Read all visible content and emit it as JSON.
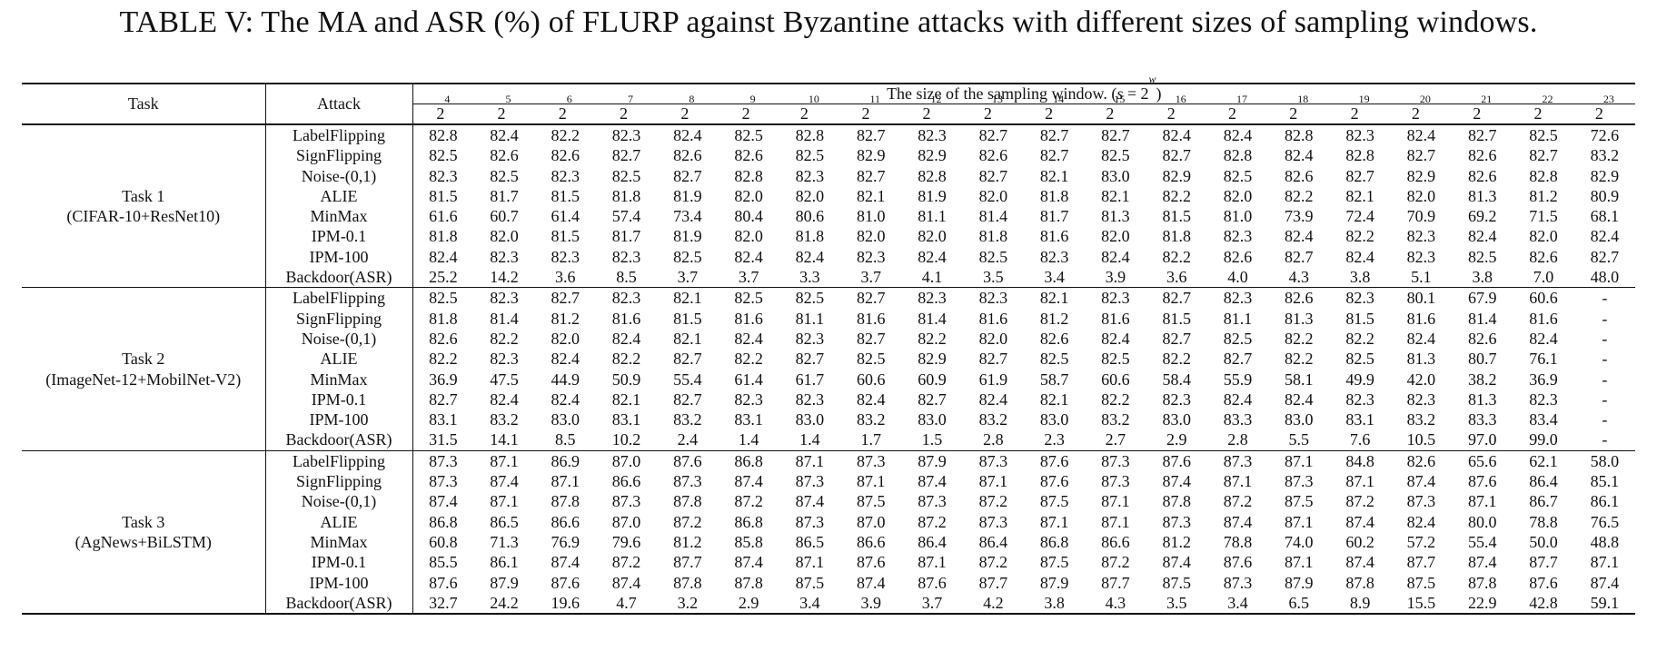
{
  "caption": "TABLE V: The MA and ASR (%) of FLURP against Byzantine attacks with different sizes of sampling windows.",
  "header": {
    "task_label": "Task",
    "attack_label": "Attack",
    "window_label": "The size of the sampling window. (s = 2^w)",
    "window_exponents": [
      "4",
      "5",
      "6",
      "7",
      "8",
      "9",
      "10",
      "11",
      "12",
      "13",
      "14",
      "15",
      "16",
      "17",
      "18",
      "19",
      "20",
      "21",
      "22",
      "23"
    ]
  },
  "tasks": [
    {
      "name": "Task 1",
      "subtitle": "(CIFAR-10+ResNet10)",
      "rows": [
        {
          "attack": "LabelFlipping",
          "values": [
            "82.8",
            "82.4",
            "82.2",
            "82.3",
            "82.4",
            "82.5",
            "82.8",
            "82.7",
            "82.3",
            "82.7",
            "82.7",
            "82.7",
            "82.4",
            "82.4",
            "82.8",
            "82.3",
            "82.4",
            "82.7",
            "82.5",
            "72.6"
          ]
        },
        {
          "attack": "SignFlipping",
          "values": [
            "82.5",
            "82.6",
            "82.6",
            "82.7",
            "82.6",
            "82.6",
            "82.5",
            "82.9",
            "82.9",
            "82.6",
            "82.7",
            "82.5",
            "82.7",
            "82.8",
            "82.4",
            "82.8",
            "82.7",
            "82.6",
            "82.7",
            "83.2"
          ]
        },
        {
          "attack": "Noise-(0,1)",
          "values": [
            "82.3",
            "82.5",
            "82.3",
            "82.5",
            "82.7",
            "82.8",
            "82.3",
            "82.7",
            "82.8",
            "82.7",
            "82.1",
            "83.0",
            "82.9",
            "82.5",
            "82.6",
            "82.7",
            "82.9",
            "82.6",
            "82.8",
            "82.9"
          ]
        },
        {
          "attack": "ALIE",
          "values": [
            "81.5",
            "81.7",
            "81.5",
            "81.8",
            "81.9",
            "82.0",
            "82.0",
            "82.1",
            "81.9",
            "82.0",
            "81.8",
            "82.1",
            "82.2",
            "82.0",
            "82.2",
            "82.1",
            "82.0",
            "81.3",
            "81.2",
            "80.9"
          ]
        },
        {
          "attack": "MinMax",
          "values": [
            "61.6",
            "60.7",
            "61.4",
            "57.4",
            "73.4",
            "80.4",
            "80.6",
            "81.0",
            "81.1",
            "81.4",
            "81.7",
            "81.3",
            "81.5",
            "81.0",
            "73.9",
            "72.4",
            "70.9",
            "69.2",
            "71.5",
            "68.1"
          ]
        },
        {
          "attack": "IPM-0.1",
          "values": [
            "81.8",
            "82.0",
            "81.5",
            "81.7",
            "81.9",
            "82.0",
            "81.8",
            "82.0",
            "82.0",
            "81.8",
            "81.6",
            "82.0",
            "81.8",
            "82.3",
            "82.4",
            "82.2",
            "82.3",
            "82.4",
            "82.0",
            "82.4"
          ]
        },
        {
          "attack": "IPM-100",
          "values": [
            "82.4",
            "82.3",
            "82.3",
            "82.3",
            "82.5",
            "82.4",
            "82.4",
            "82.3",
            "82.4",
            "82.5",
            "82.3",
            "82.4",
            "82.2",
            "82.6",
            "82.7",
            "82.4",
            "82.3",
            "82.5",
            "82.6",
            "82.7"
          ]
        },
        {
          "attack": "Backdoor(ASR)",
          "values": [
            "25.2",
            "14.2",
            "3.6",
            "8.5",
            "3.7",
            "3.7",
            "3.3",
            "3.7",
            "4.1",
            "3.5",
            "3.4",
            "3.9",
            "3.6",
            "4.0",
            "4.3",
            "3.8",
            "5.1",
            "3.8",
            "7.0",
            "48.0"
          ]
        }
      ]
    },
    {
      "name": "Task 2",
      "subtitle": "(ImageNet-12+MobilNet-V2)",
      "rows": [
        {
          "attack": "LabelFlipping",
          "values": [
            "82.5",
            "82.3",
            "82.7",
            "82.3",
            "82.1",
            "82.5",
            "82.5",
            "82.7",
            "82.3",
            "82.3",
            "82.1",
            "82.3",
            "82.7",
            "82.3",
            "82.6",
            "82.3",
            "80.1",
            "67.9",
            "60.6",
            "-"
          ]
        },
        {
          "attack": "SignFlipping",
          "values": [
            "81.8",
            "81.4",
            "81.2",
            "81.6",
            "81.5",
            "81.6",
            "81.1",
            "81.6",
            "81.4",
            "81.6",
            "81.2",
            "81.6",
            "81.5",
            "81.1",
            "81.3",
            "81.5",
            "81.6",
            "81.4",
            "81.6",
            "-"
          ]
        },
        {
          "attack": "Noise-(0,1)",
          "values": [
            "82.6",
            "82.2",
            "82.0",
            "82.4",
            "82.1",
            "82.4",
            "82.3",
            "82.7",
            "82.2",
            "82.0",
            "82.6",
            "82.4",
            "82.7",
            "82.5",
            "82.2",
            "82.2",
            "82.4",
            "82.6",
            "82.4",
            "-"
          ]
        },
        {
          "attack": "ALIE",
          "values": [
            "82.2",
            "82.3",
            "82.4",
            "82.2",
            "82.7",
            "82.2",
            "82.7",
            "82.5",
            "82.9",
            "82.7",
            "82.5",
            "82.5",
            "82.2",
            "82.7",
            "82.2",
            "82.5",
            "81.3",
            "80.7",
            "76.1",
            "-"
          ]
        },
        {
          "attack": "MinMax",
          "values": [
            "36.9",
            "47.5",
            "44.9",
            "50.9",
            "55.4",
            "61.4",
            "61.7",
            "60.6",
            "60.9",
            "61.9",
            "58.7",
            "60.6",
            "58.4",
            "55.9",
            "58.1",
            "49.9",
            "42.0",
            "38.2",
            "36.9",
            "-"
          ]
        },
        {
          "attack": "IPM-0.1",
          "values": [
            "82.7",
            "82.4",
            "82.4",
            "82.1",
            "82.7",
            "82.3",
            "82.3",
            "82.4",
            "82.7",
            "82.4",
            "82.1",
            "82.2",
            "82.3",
            "82.4",
            "82.4",
            "82.3",
            "82.3",
            "81.3",
            "82.3",
            "-"
          ]
        },
        {
          "attack": "IPM-100",
          "values": [
            "83.1",
            "83.2",
            "83.0",
            "83.1",
            "83.2",
            "83.1",
            "83.0",
            "83.2",
            "83.0",
            "83.2",
            "83.0",
            "83.2",
            "83.0",
            "83.3",
            "83.0",
            "83.1",
            "83.2",
            "83.3",
            "83.4",
            "-"
          ]
        },
        {
          "attack": "Backdoor(ASR)",
          "values": [
            "31.5",
            "14.1",
            "8.5",
            "10.2",
            "2.4",
            "1.4",
            "1.4",
            "1.7",
            "1.5",
            "2.8",
            "2.3",
            "2.7",
            "2.9",
            "2.8",
            "5.5",
            "7.6",
            "10.5",
            "97.0",
            "99.0",
            "-"
          ]
        }
      ]
    },
    {
      "name": "Task 3",
      "subtitle": "(AgNews+BiLSTM)",
      "rows": [
        {
          "attack": "LabelFlipping",
          "values": [
            "87.3",
            "87.1",
            "86.9",
            "87.0",
            "87.6",
            "86.8",
            "87.1",
            "87.3",
            "87.9",
            "87.3",
            "87.6",
            "87.3",
            "87.6",
            "87.3",
            "87.1",
            "84.8",
            "82.6",
            "65.6",
            "62.1",
            "58.0"
          ]
        },
        {
          "attack": "SignFlipping",
          "values": [
            "87.3",
            "87.4",
            "87.1",
            "86.6",
            "87.3",
            "87.4",
            "87.3",
            "87.1",
            "87.4",
            "87.1",
            "87.6",
            "87.3",
            "87.4",
            "87.1",
            "87.3",
            "87.1",
            "87.4",
            "87.6",
            "86.4",
            "85.1"
          ]
        },
        {
          "attack": "Noise-(0,1)",
          "values": [
            "87.4",
            "87.1",
            "87.8",
            "87.3",
            "87.8",
            "87.2",
            "87.4",
            "87.5",
            "87.3",
            "87.2",
            "87.5",
            "87.1",
            "87.8",
            "87.2",
            "87.5",
            "87.2",
            "87.3",
            "87.1",
            "86.7",
            "86.1"
          ]
        },
        {
          "attack": "ALIE",
          "values": [
            "86.8",
            "86.5",
            "86.6",
            "87.0",
            "87.2",
            "86.8",
            "87.3",
            "87.0",
            "87.2",
            "87.3",
            "87.1",
            "87.1",
            "87.3",
            "87.4",
            "87.1",
            "87.4",
            "82.4",
            "80.0",
            "78.8",
            "76.5"
          ]
        },
        {
          "attack": "MinMax",
          "values": [
            "60.8",
            "71.3",
            "76.9",
            "79.6",
            "81.2",
            "85.8",
            "86.5",
            "86.6",
            "86.4",
            "86.4",
            "86.8",
            "86.6",
            "81.2",
            "78.8",
            "74.0",
            "60.2",
            "57.2",
            "55.4",
            "50.0",
            "48.8"
          ]
        },
        {
          "attack": "IPM-0.1",
          "values": [
            "85.5",
            "86.1",
            "87.4",
            "87.2",
            "87.7",
            "87.4",
            "87.1",
            "87.6",
            "87.1",
            "87.2",
            "87.5",
            "87.2",
            "87.4",
            "87.6",
            "87.1",
            "87.4",
            "87.7",
            "87.4",
            "87.7",
            "87.1"
          ]
        },
        {
          "attack": "IPM-100",
          "values": [
            "87.6",
            "87.9",
            "87.6",
            "87.4",
            "87.8",
            "87.8",
            "87.5",
            "87.4",
            "87.6",
            "87.7",
            "87.9",
            "87.7",
            "87.5",
            "87.3",
            "87.9",
            "87.8",
            "87.5",
            "87.8",
            "87.6",
            "87.4"
          ]
        },
        {
          "attack": "Backdoor(ASR)",
          "values": [
            "32.7",
            "24.2",
            "19.6",
            "4.7",
            "3.2",
            "2.9",
            "3.4",
            "3.9",
            "3.7",
            "4.2",
            "3.8",
            "4.3",
            "3.5",
            "3.4",
            "6.5",
            "8.9",
            "15.5",
            "22.9",
            "42.8",
            "59.1"
          ]
        }
      ]
    }
  ]
}
